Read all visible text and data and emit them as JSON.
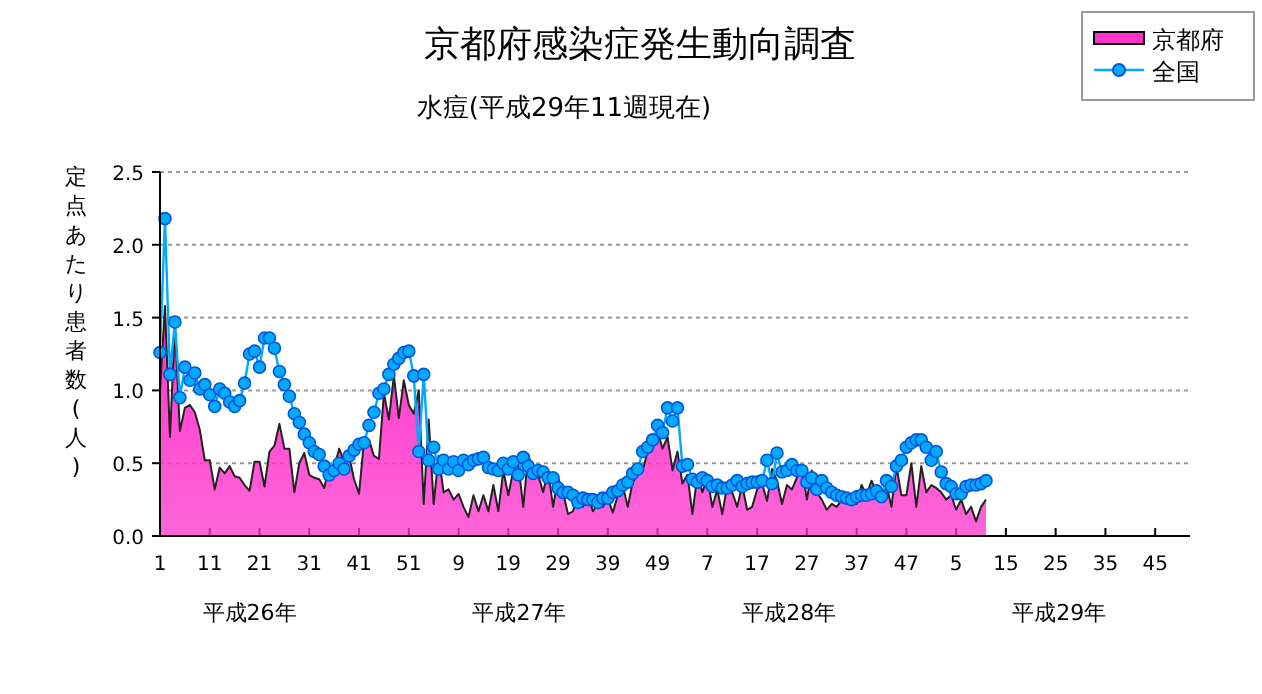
{
  "chart_data": {
    "type": "area",
    "title": "京都府感染症発生動向調査",
    "subtitle": "水痘(平成29年11週現在)",
    "ylabel": "定点あたり患者数(人)",
    "annotations": [
      "平成26年",
      "平成27年",
      "平成28年",
      "平成29年"
    ],
    "categories": [
      "1",
      null,
      null,
      null,
      null,
      null,
      null,
      null,
      null,
      null,
      "11",
      null,
      null,
      null,
      null,
      null,
      null,
      null,
      null,
      null,
      "21",
      null,
      null,
      null,
      null,
      null,
      null,
      null,
      null,
      null,
      "31",
      null,
      null,
      null,
      null,
      null,
      null,
      null,
      null,
      null,
      "41",
      null,
      null,
      null,
      null,
      null,
      null,
      null,
      null,
      null,
      "51",
      null,
      null,
      null,
      null,
      null,
      null,
      null,
      null,
      null,
      "9",
      null,
      null,
      null,
      null,
      null,
      null,
      null,
      null,
      null,
      "19",
      null,
      null,
      null,
      null,
      null,
      null,
      null,
      null,
      null,
      "29",
      null,
      null,
      null,
      null,
      null,
      null,
      null,
      null,
      null,
      "39",
      null,
      null,
      null,
      null,
      null,
      null,
      null,
      null,
      null,
      "49",
      null,
      null,
      null,
      null,
      null,
      null,
      null,
      null,
      null,
      "7",
      null,
      null,
      null,
      null,
      null,
      null,
      null,
      null,
      null,
      "17",
      null,
      null,
      null,
      null,
      null,
      null,
      null,
      null,
      null,
      "27",
      null,
      null,
      null,
      null,
      null,
      null,
      null,
      null,
      null,
      "37",
      null,
      null,
      null,
      null,
      null,
      null,
      null,
      null,
      null,
      "47",
      null,
      null,
      null,
      null,
      null,
      null,
      null,
      null,
      null,
      "5",
      null,
      null,
      null,
      null,
      null,
      null,
      null,
      null,
      null,
      "15",
      null,
      null,
      null,
      null,
      null,
      null,
      null,
      null,
      null,
      "25",
      null,
      null,
      null,
      null,
      null,
      null,
      null,
      null,
      null,
      "35",
      null,
      null,
      null,
      null,
      null,
      null,
      null,
      null,
      null,
      "45",
      null,
      null,
      null,
      null,
      null,
      null,
      null
    ],
    "ylim": [
      0,
      2.5
    ],
    "yticks": [
      {
        "value": 0,
        "label": "0.0"
      },
      {
        "value": 0.5,
        "label": "0.5"
      },
      {
        "value": 1,
        "label": "1.0"
      },
      {
        "value": 1.5,
        "label": "1.5"
      },
      {
        "value": 2,
        "label": "2.0"
      },
      {
        "value": 2.5,
        "label": "2.5"
      }
    ],
    "grid": "y",
    "legend": "top right",
    "series": [
      {
        "name": "京都府",
        "color": "#ff33cc",
        "values": [
          1.0,
          1.58,
          0.68,
          1.44,
          0.72,
          0.88,
          0.9,
          0.85,
          0.73,
          0.52,
          0.52,
          0.32,
          0.47,
          0.43,
          0.48,
          0.41,
          0.4,
          0.35,
          0.31,
          0.51,
          0.51,
          0.34,
          0.58,
          0.62,
          0.77,
          0.6,
          0.6,
          0.3,
          0.5,
          0.57,
          0.42,
          0.4,
          0.39,
          0.33,
          0.48,
          0.47,
          0.6,
          0.51,
          0.55,
          0.39,
          0.29,
          0.65,
          0.66,
          0.55,
          0.53,
          0.98,
          0.8,
          1.1,
          0.81,
          1.07,
          0.9,
          0.84,
          1.0,
          0.22,
          0.8,
          0.22,
          0.55,
          0.3,
          0.32,
          0.25,
          0.29,
          0.2,
          0.13,
          0.28,
          0.17,
          0.28,
          0.17,
          0.35,
          0.17,
          0.45,
          0.28,
          0.45,
          0.5,
          0.2,
          0.56,
          0.45,
          0.42,
          0.3,
          0.45,
          0.2,
          0.4,
          0.3,
          0.15,
          0.17,
          0.28,
          0.2,
          0.28,
          0.17,
          0.22,
          0.2,
          0.26,
          0.16,
          0.28,
          0.35,
          0.2,
          0.37,
          0.42,
          0.45,
          0.58,
          0.62,
          0.72,
          0.6,
          0.68,
          0.45,
          0.58,
          0.36,
          0.42,
          0.15,
          0.42,
          0.3,
          0.4,
          0.2,
          0.32,
          0.15,
          0.35,
          0.3,
          0.2,
          0.35,
          0.18,
          0.2,
          0.32,
          0.36,
          0.24,
          0.46,
          0.38,
          0.22,
          0.35,
          0.32,
          0.4,
          0.47,
          0.25,
          0.45,
          0.3,
          0.25,
          0.18,
          0.22,
          0.2,
          0.25,
          0.22,
          0.27,
          0.22,
          0.35,
          0.28,
          0.38,
          0.3,
          0.25,
          0.35,
          0.2,
          0.48,
          0.28,
          0.28,
          0.5,
          0.2,
          0.48,
          0.3,
          0.35,
          0.33,
          0.3,
          0.25,
          0.28,
          0.18,
          0.25,
          0.15,
          0.2,
          0.1,
          0.2,
          0.25,
          null,
          null,
          null,
          null,
          null,
          null,
          null,
          null,
          null,
          null,
          null,
          null,
          null,
          null,
          null,
          null,
          null,
          null,
          null,
          null,
          null,
          null,
          null,
          null,
          null,
          null,
          null,
          null,
          null,
          null,
          null,
          null,
          null,
          null,
          null,
          null,
          null,
          null,
          null,
          null,
          null
        ]
      },
      {
        "name": "全国",
        "type": "line",
        "color": "#00aaff",
        "marker": "circle",
        "values": [
          1.26,
          2.18,
          1.11,
          1.47,
          0.95,
          1.16,
          1.07,
          1.12,
          1.01,
          1.04,
          0.97,
          0.89,
          1.01,
          0.98,
          0.92,
          0.89,
          0.93,
          1.05,
          1.25,
          1.27,
          1.16,
          1.36,
          1.36,
          1.29,
          1.13,
          1.04,
          0.96,
          0.84,
          0.78,
          0.7,
          0.64,
          0.58,
          0.56,
          0.48,
          0.42,
          0.45,
          0.5,
          0.46,
          0.55,
          0.59,
          0.63,
          0.64,
          0.76,
          0.85,
          0.98,
          1.01,
          1.11,
          1.18,
          1.22,
          1.26,
          1.27,
          1.1,
          0.58,
          1.11,
          0.52,
          0.61,
          0.46,
          0.52,
          0.46,
          0.51,
          0.45,
          0.52,
          0.49,
          0.52,
          0.53,
          0.54,
          0.47,
          0.46,
          0.45,
          0.5,
          0.46,
          0.51,
          0.42,
          0.54,
          0.48,
          0.43,
          0.45,
          0.44,
          0.4,
          0.4,
          0.33,
          0.3,
          0.3,
          0.28,
          0.23,
          0.26,
          0.25,
          0.25,
          0.23,
          0.26,
          0.26,
          0.3,
          0.31,
          0.35,
          0.37,
          0.43,
          0.46,
          0.58,
          0.61,
          0.66,
          0.76,
          0.71,
          0.88,
          0.79,
          0.88,
          0.48,
          0.49,
          0.39,
          0.37,
          0.4,
          0.38,
          0.34,
          0.35,
          0.33,
          0.33,
          0.35,
          0.38,
          0.34,
          0.36,
          0.37,
          0.37,
          0.38,
          0.52,
          0.36,
          0.57,
          0.44,
          0.45,
          0.49,
          0.45,
          0.45,
          0.37,
          0.4,
          0.32,
          0.38,
          0.33,
          0.3,
          0.28,
          0.27,
          0.26,
          0.25,
          0.27,
          0.28,
          0.28,
          0.29,
          0.31,
          0.27,
          0.38,
          0.34,
          0.48,
          0.52,
          0.61,
          0.64,
          0.66,
          0.66,
          0.61,
          0.52,
          0.58,
          0.44,
          0.36,
          0.34,
          0.29,
          0.29,
          0.34,
          0.35,
          0.35,
          0.36,
          0.38,
          null,
          null,
          null,
          null,
          null,
          null,
          null,
          null,
          null,
          null,
          null,
          null,
          null,
          null,
          null,
          null,
          null,
          null,
          null,
          null,
          null,
          null,
          null,
          null,
          null,
          null,
          null,
          null,
          null,
          null,
          null,
          null,
          null,
          null,
          null,
          null,
          null,
          null,
          null,
          null,
          null
        ]
      }
    ]
  }
}
